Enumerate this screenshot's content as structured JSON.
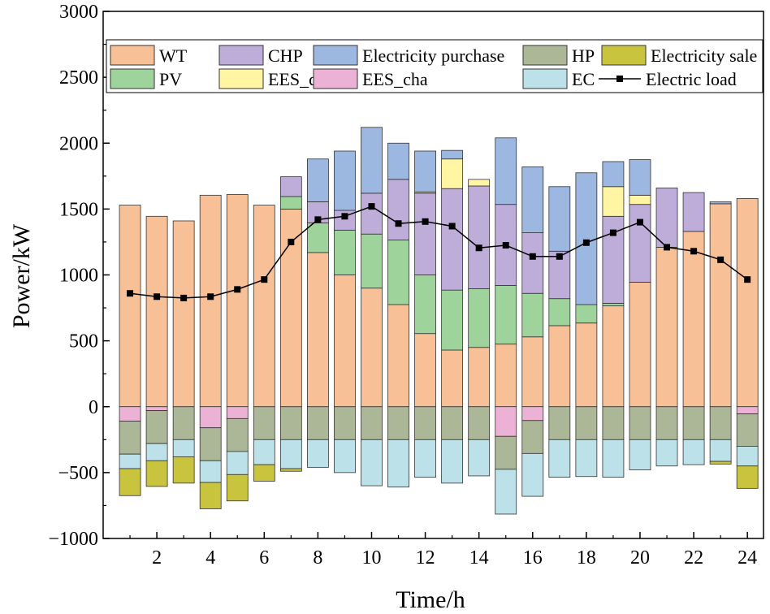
{
  "chart_data": {
    "type": "bar",
    "subtype": "stacked-bar-with-line",
    "title": "",
    "xlabel": "Time/h",
    "ylabel": "Power/kW",
    "xlim": [
      0,
      24.6
    ],
    "ylim": [
      -1000,
      3000
    ],
    "x_ticks": [
      2,
      4,
      6,
      8,
      10,
      12,
      14,
      16,
      18,
      20,
      22,
      24
    ],
    "y_ticks": [
      -1000,
      -500,
      0,
      500,
      1000,
      1500,
      2000,
      2500,
      3000
    ],
    "categories": [
      1,
      2,
      3,
      4,
      5,
      6,
      7,
      8,
      9,
      10,
      11,
      12,
      13,
      14,
      15,
      16,
      17,
      18,
      19,
      20,
      21,
      22,
      23,
      24
    ],
    "legend_position": "top",
    "series_positive": [
      {
        "name": "WT",
        "color": "#F8C096",
        "values": [
          1530,
          1445,
          1410,
          1605,
          1610,
          1530,
          1500,
          1170,
          1000,
          900,
          775,
          555,
          430,
          450,
          475,
          530,
          615,
          635,
          765,
          945,
          1210,
          1330,
          1540,
          1580
        ]
      },
      {
        "name": "PV",
        "color": "#9ED49C",
        "values": [
          0,
          0,
          0,
          0,
          0,
          0,
          95,
          225,
          340,
          410,
          490,
          445,
          455,
          445,
          445,
          330,
          205,
          140,
          20,
          0,
          0,
          0,
          0,
          0
        ]
      },
      {
        "name": "CHP",
        "color": "#BEADD8",
        "values": [
          0,
          0,
          0,
          0,
          0,
          0,
          150,
          160,
          150,
          310,
          460,
          620,
          770,
          780,
          615,
          460,
          360,
          0,
          660,
          590,
          450,
          295,
          0,
          0
        ]
      },
      {
        "name": "EES_dis",
        "color": "#FFF5A3",
        "values": [
          0,
          0,
          0,
          0,
          0,
          0,
          0,
          0,
          0,
          0,
          0,
          10,
          225,
          50,
          0,
          0,
          0,
          0,
          225,
          70,
          0,
          0,
          0,
          0
        ]
      },
      {
        "name": "Electricity purchase",
        "color": "#9CB7E0",
        "values": [
          0,
          0,
          0,
          0,
          0,
          0,
          0,
          325,
          450,
          500,
          275,
          310,
          65,
          0,
          505,
          500,
          490,
          1000,
          190,
          270,
          0,
          0,
          15,
          0
        ]
      }
    ],
    "series_negative": [
      {
        "name": "EES_cha",
        "color": "#EBB2D6",
        "values": [
          -110,
          -30,
          0,
          -160,
          -90,
          0,
          0,
          0,
          0,
          0,
          0,
          0,
          0,
          0,
          -225,
          -105,
          0,
          0,
          0,
          0,
          0,
          0,
          0,
          -55
        ]
      },
      {
        "name": "HP",
        "color": "#ACB797",
        "values": [
          -250,
          -250,
          -250,
          -250,
          -250,
          -250,
          -250,
          -250,
          -250,
          -250,
          -250,
          -250,
          -250,
          -250,
          -250,
          -250,
          -250,
          -250,
          -250,
          -250,
          -250,
          -250,
          -250,
          -245
        ]
      },
      {
        "name": "EC",
        "color": "#BCE1E9",
        "values": [
          -110,
          -130,
          -130,
          -165,
          -175,
          -190,
          -220,
          -210,
          -250,
          -350,
          -360,
          -285,
          -330,
          -275,
          -340,
          -325,
          -285,
          -280,
          -285,
          -230,
          -200,
          -190,
          -165,
          -150
        ]
      },
      {
        "name": "Electricity sale",
        "color": "#C9C43E",
        "values": [
          -205,
          -195,
          -200,
          -200,
          -200,
          -125,
          -20,
          0,
          0,
          0,
          0,
          0,
          0,
          0,
          0,
          0,
          0,
          0,
          0,
          0,
          0,
          0,
          -20,
          -170
        ]
      }
    ],
    "line_series": {
      "name": "Electric load",
      "color": "#000000",
      "values": [
        860,
        835,
        825,
        835,
        890,
        965,
        1250,
        1420,
        1445,
        1520,
        1390,
        1405,
        1370,
        1205,
        1225,
        1140,
        1140,
        1245,
        1320,
        1400,
        1210,
        1180,
        1115,
        965
      ]
    },
    "legend": [
      {
        "name": "WT",
        "kind": "box",
        "color": "#F8C096"
      },
      {
        "name": "CHP",
        "kind": "box",
        "color": "#BEADD8"
      },
      {
        "name": "Electricity purchase",
        "kind": "box",
        "color": "#9CB7E0"
      },
      {
        "name": "HP",
        "kind": "box",
        "color": "#ACB797"
      },
      {
        "name": "Electricity sale",
        "kind": "box",
        "color": "#C9C43E"
      },
      {
        "name": "PV",
        "kind": "box",
        "color": "#9ED49C"
      },
      {
        "name": "EES_dis",
        "kind": "box",
        "color": "#FFF5A3"
      },
      {
        "name": "EES_cha",
        "kind": "box",
        "color": "#EBB2D6"
      },
      {
        "name": "EC",
        "kind": "box",
        "color": "#BCE1E9"
      },
      {
        "name": "Electric load",
        "kind": "line",
        "color": "#000000"
      }
    ]
  }
}
